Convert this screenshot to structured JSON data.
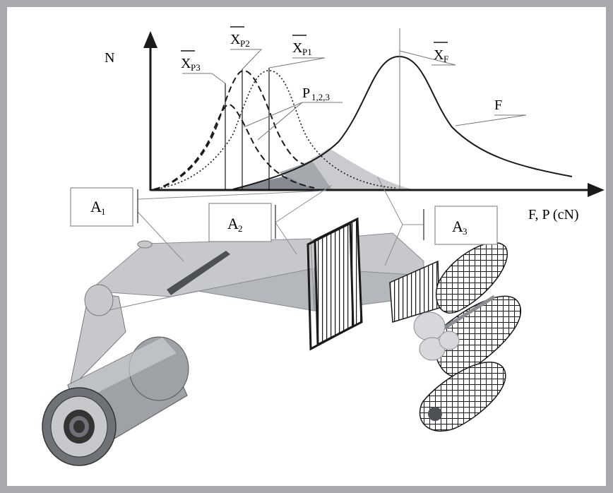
{
  "axes": {
    "y_label": "N",
    "x_label": "F, P (cN)"
  },
  "curves": {
    "xp3": {
      "base": "X",
      "sub": "P3"
    },
    "xp2": {
      "base": "X",
      "sub": "P2"
    },
    "xp1": {
      "base": "X",
      "sub": "P1"
    },
    "xf": {
      "base": "X",
      "sub": "F"
    },
    "p": {
      "base": "P",
      "sub": "1,2,3"
    },
    "f": {
      "text": "F"
    }
  },
  "zones": {
    "a1": {
      "base": "A",
      "sub": "1"
    },
    "a2": {
      "base": "A",
      "sub": "2"
    },
    "a3": {
      "base": "A",
      "sub": "3"
    }
  },
  "colors": {
    "border": "#a7a9ac",
    "fabric": "#c6c8cb",
    "fabric_dark": "#9ea1a5",
    "zone_dark": "#868a90",
    "zone_mid": "#a5a8ad",
    "zone_light": "#c9cbce",
    "ink": "#1a1a1a"
  }
}
